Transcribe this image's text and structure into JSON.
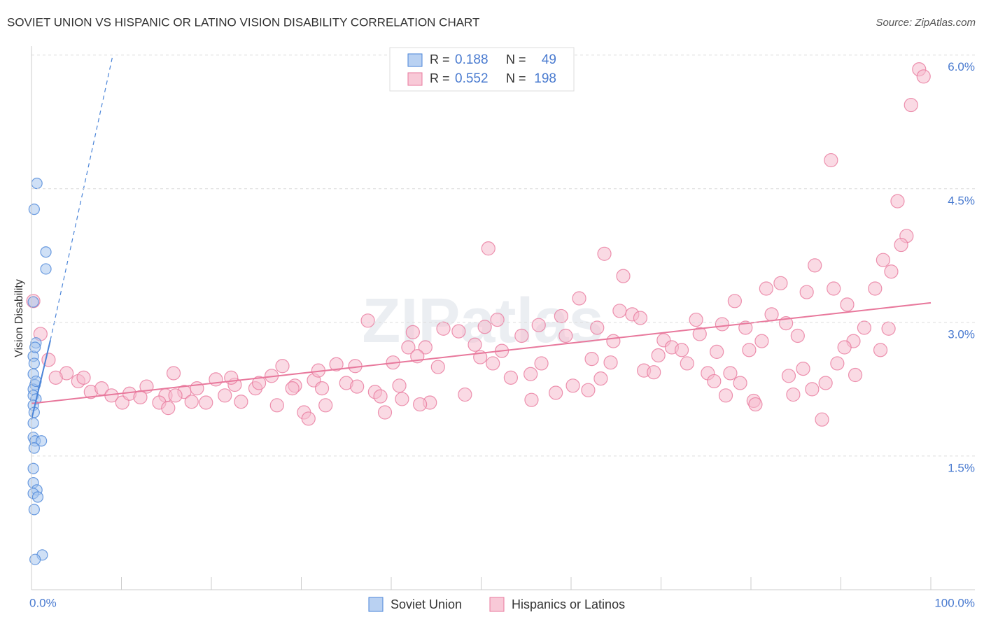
{
  "chart_data": {
    "type": "scatter",
    "title": "SOVIET UNION VS HISPANIC OR LATINO VISION DISABILITY CORRELATION CHART",
    "source": "Source: ZipAtlas.com",
    "y_label": "Vision Disability",
    "watermark": "ZIPatlas",
    "xlim": [
      0,
      100
    ],
    "ylim": [
      0,
      6.1
    ],
    "xticks": [
      {
        "value": 0,
        "label": "0.0%"
      },
      {
        "value": 100,
        "label": "100.0%"
      }
    ],
    "yticks": [
      {
        "value": 1.5,
        "label": "1.5%"
      },
      {
        "value": 3.0,
        "label": "3.0%"
      },
      {
        "value": 4.5,
        "label": "4.5%"
      },
      {
        "value": 6.0,
        "label": "6.0%"
      }
    ],
    "grid": true,
    "stat_labels": {
      "r": "R =",
      "n": "N ="
    },
    "series": [
      {
        "name": "Soviet Union",
        "color": "#4a84d8",
        "fill": "#a8c6ef",
        "r": 0.188,
        "n": 49,
        "x": [
          0.6,
          0.3,
          1.6,
          1.6,
          0.2,
          0.5,
          0.2,
          0.3,
          0.2,
          0.4,
          0.2,
          0.2,
          0.5,
          0.2,
          0.3,
          0.2,
          0.2,
          0.4,
          1.1,
          0.3,
          0.2,
          0.2,
          0.6,
          0.2,
          0.7,
          0.3,
          1.2,
          0.4,
          0.5,
          0.4
        ],
        "values": [
          4.56,
          4.27,
          3.79,
          3.6,
          3.23,
          2.77,
          2.62,
          2.54,
          2.42,
          2.3,
          2.25,
          2.18,
          2.14,
          2.07,
          1.99,
          1.87,
          1.71,
          1.67,
          1.67,
          1.59,
          1.36,
          1.2,
          1.12,
          1.08,
          1.04,
          0.9,
          0.39,
          0.34,
          2.34,
          2.72
        ],
        "trend": {
          "x": [
            0,
            2.1
          ],
          "values": [
            1.91,
            2.8
          ]
        },
        "trend_extension": {
          "x": [
            2.1,
            9.0
          ],
          "values": [
            2.8,
            5.98
          ]
        }
      },
      {
        "name": "Hispanics or Latinos",
        "color": "#e8789c",
        "fill": "#f6bccd",
        "r": 0.552,
        "n": 198,
        "x": [
          98.7,
          99.2,
          97.8,
          88.9,
          96.3,
          97.3,
          96.7,
          50.8,
          63.7,
          94.7,
          87.1,
          95.6,
          65.8,
          83.3,
          81.7,
          89.2,
          93.8,
          86.2,
          60.9,
          78.2,
          90.7,
          65.4,
          66.8,
          82.3,
          37.4,
          51.8,
          67.7,
          58.9,
          73.9,
          76.8,
          83.9,
          92.6,
          95.3,
          45.8,
          50.4,
          56.4,
          62.9,
          79.4,
          85.2,
          74.3,
          42.4,
          47.5,
          54.5,
          59.4,
          64.7,
          70.3,
          81.2,
          91.4,
          41.9,
          43.8,
          49.3,
          52.3,
          71.2,
          76.2,
          79.8,
          90.4,
          94.4,
          42.9,
          49.9,
          69.7,
          72.3,
          62.3,
          40.2,
          51.3,
          56.7,
          64.4,
          72.9,
          89.6,
          33.9,
          36.0,
          27.9,
          45.2,
          68.1,
          85.8,
          15.8,
          75.2,
          77.7,
          26.7,
          53.3,
          55.5,
          69.2,
          91.6,
          31.4,
          63.3,
          84.2,
          75.9,
          78.8,
          88.3,
          20.5,
          35.0,
          40.9,
          60.2,
          86.8,
          12.8,
          22.6,
          29.3,
          32.3,
          38.2,
          61.9,
          58.3,
          77.2,
          84.7,
          48.2,
          14.9,
          17.0,
          21.5,
          24.9,
          38.8,
          41.2,
          55.6,
          80.3,
          44.3,
          43.2,
          23.3,
          32.7,
          27.3,
          80.5,
          19.4,
          17.8,
          14.2,
          15.2,
          30.3,
          39.3,
          30.8,
          87.9,
          1.9,
          3.9,
          5.2,
          1.0,
          0.2,
          6.6,
          7.8,
          8.9,
          10.1,
          10.9,
          12.1,
          2.7,
          5.8,
          16.0,
          18.4,
          22.2,
          25.3,
          29.0,
          31.9,
          36.2
        ],
        "values": [
          5.84,
          5.76,
          5.44,
          4.82,
          4.36,
          3.97,
          3.87,
          3.83,
          3.77,
          3.7,
          3.64,
          3.57,
          3.52,
          3.44,
          3.38,
          3.38,
          3.38,
          3.34,
          3.27,
          3.24,
          3.2,
          3.13,
          3.09,
          3.09,
          3.02,
          3.03,
          3.05,
          3.07,
          3.03,
          2.98,
          2.99,
          2.94,
          2.93,
          2.93,
          2.95,
          2.97,
          2.94,
          2.94,
          2.85,
          2.87,
          2.89,
          2.9,
          2.85,
          2.85,
          2.79,
          2.8,
          2.79,
          2.79,
          2.72,
          2.72,
          2.75,
          2.68,
          2.72,
          2.67,
          2.69,
          2.72,
          2.69,
          2.62,
          2.61,
          2.63,
          2.69,
          2.59,
          2.55,
          2.54,
          2.54,
          2.55,
          2.54,
          2.54,
          2.53,
          2.51,
          2.51,
          2.5,
          2.46,
          2.48,
          2.43,
          2.43,
          2.43,
          2.4,
          2.38,
          2.42,
          2.44,
          2.41,
          2.35,
          2.37,
          2.4,
          2.34,
          2.32,
          2.32,
          2.36,
          2.32,
          2.29,
          2.29,
          2.25,
          2.28,
          2.3,
          2.29,
          2.26,
          2.22,
          2.24,
          2.21,
          2.18,
          2.19,
          2.19,
          2.18,
          2.22,
          2.18,
          2.26,
          2.17,
          2.14,
          2.13,
          2.12,
          2.1,
          2.08,
          2.11,
          2.07,
          2.07,
          2.08,
          2.1,
          2.11,
          2.1,
          2.04,
          1.99,
          1.99,
          1.92,
          1.91,
          2.58,
          2.43,
          2.34,
          2.87,
          3.24,
          2.22,
          2.26,
          2.18,
          2.1,
          2.2,
          2.16,
          2.38,
          2.38,
          2.18,
          2.26,
          2.38,
          2.32,
          2.26,
          2.46,
          2.28
        ],
        "trend": {
          "x": [
            0,
            100
          ],
          "values": [
            2.09,
            3.22
          ]
        }
      }
    ]
  }
}
